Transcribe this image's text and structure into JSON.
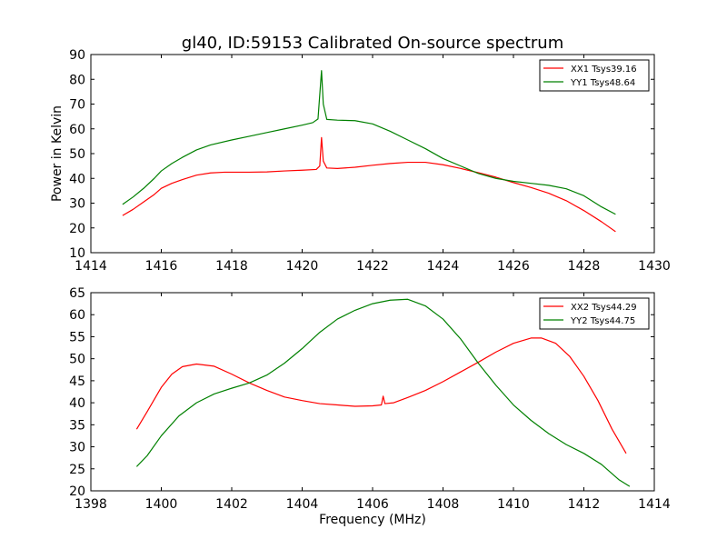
{
  "figure": {
    "title": "gl40, ID:59153 Calibrated On-source spectrum"
  },
  "chart_data": [
    {
      "type": "line",
      "xlabel": "",
      "ylabel": "Power in Kelvin",
      "xlim": [
        1414,
        1430
      ],
      "ylim": [
        10,
        90
      ],
      "xticks": [
        1414,
        1416,
        1418,
        1420,
        1422,
        1424,
        1426,
        1428,
        1430
      ],
      "yticks": [
        10,
        20,
        30,
        40,
        50,
        60,
        70,
        80,
        90
      ],
      "legend_position": "top-right",
      "grid": false,
      "series": [
        {
          "name": "XX1 Tsys39.16",
          "color": "#ff0000",
          "points": [
            [
              1414.9,
              25
            ],
            [
              1415.2,
              27.5
            ],
            [
              1415.5,
              30.5
            ],
            [
              1415.8,
              33.5
            ],
            [
              1416.0,
              36
            ],
            [
              1416.3,
              38
            ],
            [
              1416.6,
              39.5
            ],
            [
              1417.0,
              41.3
            ],
            [
              1417.4,
              42.2
            ],
            [
              1417.8,
              42.5
            ],
            [
              1418.5,
              42.5
            ],
            [
              1419.0,
              42.6
            ],
            [
              1419.5,
              43
            ],
            [
              1420.0,
              43.3
            ],
            [
              1420.4,
              43.6
            ],
            [
              1420.5,
              45
            ],
            [
              1420.55,
              56.5
            ],
            [
              1420.6,
              47
            ],
            [
              1420.7,
              44.2
            ],
            [
              1421.0,
              44
            ],
            [
              1421.5,
              44.5
            ],
            [
              1422.0,
              45.3
            ],
            [
              1422.5,
              46
            ],
            [
              1423.0,
              46.5
            ],
            [
              1423.5,
              46.5
            ],
            [
              1424.0,
              45.5
            ],
            [
              1424.5,
              44
            ],
            [
              1425.0,
              42.3
            ],
            [
              1425.5,
              40.5
            ],
            [
              1426.0,
              38.3
            ],
            [
              1426.5,
              36.3
            ],
            [
              1427.0,
              34
            ],
            [
              1427.5,
              31
            ],
            [
              1428.0,
              27
            ],
            [
              1428.5,
              22.5
            ],
            [
              1428.9,
              18.5
            ]
          ]
        },
        {
          "name": "YY1 Tsys48.64",
          "color": "#008000",
          "points": [
            [
              1414.9,
              29.5
            ],
            [
              1415.2,
              32.5
            ],
            [
              1415.5,
              36
            ],
            [
              1415.8,
              40
            ],
            [
              1416.0,
              43
            ],
            [
              1416.3,
              46
            ],
            [
              1416.6,
              48.5
            ],
            [
              1417.0,
              51.5
            ],
            [
              1417.4,
              53.5
            ],
            [
              1418.0,
              55.5
            ],
            [
              1418.5,
              57
            ],
            [
              1419.0,
              58.5
            ],
            [
              1419.5,
              60
            ],
            [
              1420.0,
              61.5
            ],
            [
              1420.3,
              62.5
            ],
            [
              1420.45,
              64
            ],
            [
              1420.55,
              83.5
            ],
            [
              1420.6,
              70
            ],
            [
              1420.7,
              63.8
            ],
            [
              1421.0,
              63.5
            ],
            [
              1421.5,
              63.3
            ],
            [
              1422.0,
              62
            ],
            [
              1422.5,
              59
            ],
            [
              1423.0,
              55.5
            ],
            [
              1423.5,
              52
            ],
            [
              1424.0,
              48
            ],
            [
              1424.5,
              45
            ],
            [
              1425.0,
              42
            ],
            [
              1425.5,
              40
            ],
            [
              1426.0,
              38.8
            ],
            [
              1426.5,
              38
            ],
            [
              1427.0,
              37.2
            ],
            [
              1427.5,
              35.8
            ],
            [
              1428.0,
              33
            ],
            [
              1428.5,
              28.5
            ],
            [
              1428.9,
              25.5
            ]
          ]
        }
      ]
    },
    {
      "type": "line",
      "xlabel": "Frequency (MHz)",
      "ylabel": "",
      "xlim": [
        1398,
        1414
      ],
      "ylim": [
        20,
        65
      ],
      "xticks": [
        1398,
        1400,
        1402,
        1404,
        1406,
        1408,
        1410,
        1412,
        1414
      ],
      "yticks": [
        20,
        25,
        30,
        35,
        40,
        45,
        50,
        55,
        60,
        65
      ],
      "legend_position": "top-right",
      "grid": false,
      "series": [
        {
          "name": "XX2 Tsys44.29",
          "color": "#ff0000",
          "points": [
            [
              1399.3,
              34
            ],
            [
              1399.6,
              38
            ],
            [
              1400.0,
              43.5
            ],
            [
              1400.3,
              46.5
            ],
            [
              1400.6,
              48.2
            ],
            [
              1401.0,
              48.8
            ],
            [
              1401.5,
              48.3
            ],
            [
              1402.0,
              46.5
            ],
            [
              1402.5,
              44.5
            ],
            [
              1403.0,
              42.8
            ],
            [
              1403.5,
              41.3
            ],
            [
              1404.0,
              40.5
            ],
            [
              1404.5,
              39.8
            ],
            [
              1405.0,
              39.5
            ],
            [
              1405.5,
              39.2
            ],
            [
              1406.0,
              39.3
            ],
            [
              1406.25,
              39.5
            ],
            [
              1406.3,
              41.5
            ],
            [
              1406.35,
              39.8
            ],
            [
              1406.6,
              40
            ],
            [
              1407.0,
              41.2
            ],
            [
              1407.5,
              42.8
            ],
            [
              1408.0,
              44.8
            ],
            [
              1408.5,
              47
            ],
            [
              1409.0,
              49.2
            ],
            [
              1409.5,
              51.5
            ],
            [
              1410.0,
              53.5
            ],
            [
              1410.5,
              54.7
            ],
            [
              1410.8,
              54.7
            ],
            [
              1411.2,
              53.5
            ],
            [
              1411.6,
              50.5
            ],
            [
              1412.0,
              46
            ],
            [
              1412.4,
              40.5
            ],
            [
              1412.8,
              34
            ],
            [
              1413.2,
              28.5
            ]
          ]
        },
        {
          "name": "YY2 Tsys44.75",
          "color": "#008000",
          "points": [
            [
              1399.3,
              25.5
            ],
            [
              1399.6,
              28
            ],
            [
              1400.0,
              32.5
            ],
            [
              1400.5,
              37
            ],
            [
              1401.0,
              40
            ],
            [
              1401.5,
              42
            ],
            [
              1402.0,
              43.3
            ],
            [
              1402.5,
              44.5
            ],
            [
              1403.0,
              46.3
            ],
            [
              1403.5,
              49
            ],
            [
              1404.0,
              52.3
            ],
            [
              1404.5,
              56
            ],
            [
              1405.0,
              59
            ],
            [
              1405.5,
              61
            ],
            [
              1406.0,
              62.5
            ],
            [
              1406.5,
              63.3
            ],
            [
              1407.0,
              63.5
            ],
            [
              1407.5,
              62
            ],
            [
              1408.0,
              59
            ],
            [
              1408.5,
              54.5
            ],
            [
              1409.0,
              49
            ],
            [
              1409.5,
              44
            ],
            [
              1410.0,
              39.5
            ],
            [
              1410.5,
              36
            ],
            [
              1411.0,
              33
            ],
            [
              1411.5,
              30.5
            ],
            [
              1412.0,
              28.5
            ],
            [
              1412.5,
              26
            ],
            [
              1413.0,
              22.5
            ],
            [
              1413.3,
              21
            ]
          ]
        }
      ]
    }
  ]
}
